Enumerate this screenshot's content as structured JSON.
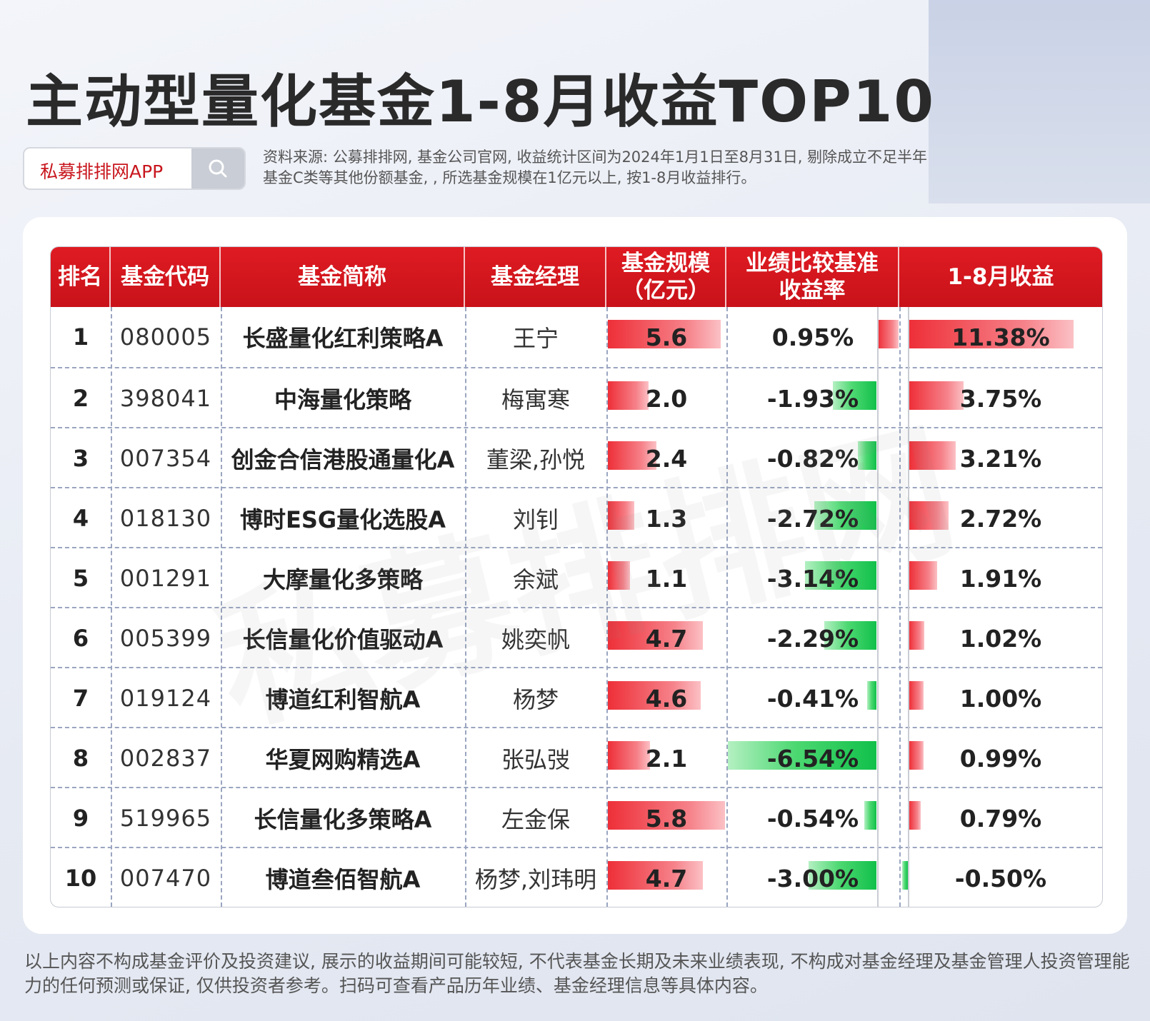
{
  "title": "主动型量化基金1-8月收益TOP10",
  "search": {
    "text": "私募排排网APP",
    "icon": "search-icon"
  },
  "source_note": "资料来源: 公募排排网, 基金公司官网, 收益统计区间为2024年1月1日至8月31日, 剔除成立不足半年基金C类等其他份额基金, , 所选基金规模在1亿元以上, 按1-8月收益排行。",
  "watermark": "私募排排网",
  "table": {
    "headers": {
      "rank": "排名",
      "code": "基金代码",
      "name": "基金简称",
      "manager": "基金经理",
      "size": "基金规模\n（亿元）",
      "benchmark": "业绩比较基准\n收益率",
      "return": "1-8月收益"
    },
    "rows": [
      {
        "rank": "1",
        "code": "080005",
        "name": "长盛量化红利策略A",
        "manager": "王宁",
        "size": "5.6",
        "size_value": 5.6,
        "benchmark": "0.95%",
        "benchmark_value": 0.95,
        "ret": "11.38%",
        "ret_value": 11.38
      },
      {
        "rank": "2",
        "code": "398041",
        "name": "中海量化策略",
        "manager": "梅寓寒",
        "size": "2.0",
        "size_value": 2.0,
        "benchmark": "-1.93%",
        "benchmark_value": -1.93,
        "ret": "3.75%",
        "ret_value": 3.75
      },
      {
        "rank": "3",
        "code": "007354",
        "name": "创金合信港股通量化A",
        "manager": "董梁,孙悦",
        "size": "2.4",
        "size_value": 2.4,
        "benchmark": "-0.82%",
        "benchmark_value": -0.82,
        "ret": "3.21%",
        "ret_value": 3.21
      },
      {
        "rank": "4",
        "code": "018130",
        "name": "博时ESG量化选股A",
        "manager": "刘钊",
        "size": "1.3",
        "size_value": 1.3,
        "benchmark": "-2.72%",
        "benchmark_value": -2.72,
        "ret": "2.72%",
        "ret_value": 2.72
      },
      {
        "rank": "5",
        "code": "001291",
        "name": "大摩量化多策略",
        "manager": "余斌",
        "size": "1.1",
        "size_value": 1.1,
        "benchmark": "-3.14%",
        "benchmark_value": -3.14,
        "ret": "1.91%",
        "ret_value": 1.91
      },
      {
        "rank": "6",
        "code": "005399",
        "name": "长信量化价值驱动A",
        "manager": "姚奕帆",
        "size": "4.7",
        "size_value": 4.7,
        "benchmark": "-2.29%",
        "benchmark_value": -2.29,
        "ret": "1.02%",
        "ret_value": 1.02
      },
      {
        "rank": "7",
        "code": "019124",
        "name": "博道红利智航A",
        "manager": "杨梦",
        "size": "4.6",
        "size_value": 4.6,
        "benchmark": "-0.41%",
        "benchmark_value": -0.41,
        "ret": "1.00%",
        "ret_value": 1.0
      },
      {
        "rank": "8",
        "code": "002837",
        "name": "华夏网购精选A",
        "manager": "张弘弢",
        "size": "2.1",
        "size_value": 2.1,
        "benchmark": "-6.54%",
        "benchmark_value": -6.54,
        "ret": "0.99%",
        "ret_value": 0.99
      },
      {
        "rank": "9",
        "code": "519965",
        "name": "长信量化多策略A",
        "manager": "左金保",
        "size": "5.8",
        "size_value": 5.8,
        "benchmark": "-0.54%",
        "benchmark_value": -0.54,
        "ret": "0.79%",
        "ret_value": 0.79
      },
      {
        "rank": "10",
        "code": "007470",
        "name": "博道叁佰智航A",
        "manager": "杨梦,刘玮明",
        "size": "4.7",
        "size_value": 4.7,
        "benchmark": "-3.00%",
        "benchmark_value": -3.0,
        "ret": "-0.50%",
        "ret_value": -0.5
      }
    ]
  },
  "disclaimer": "以上内容不构成基金评价及投资建议, 展示的收益期间可能较短, 不代表基金长期及未来业绩表现, 不构成对基金经理及基金管理人投资管理能力的任何预测或保证, 仅供投资者参考。扫码可查看产品历年业绩、基金经理信息等具体内容。",
  "colors": {
    "header_red": "#d4161e",
    "bar_red": "#ee2f38",
    "bar_green": "#11c04a"
  }
}
